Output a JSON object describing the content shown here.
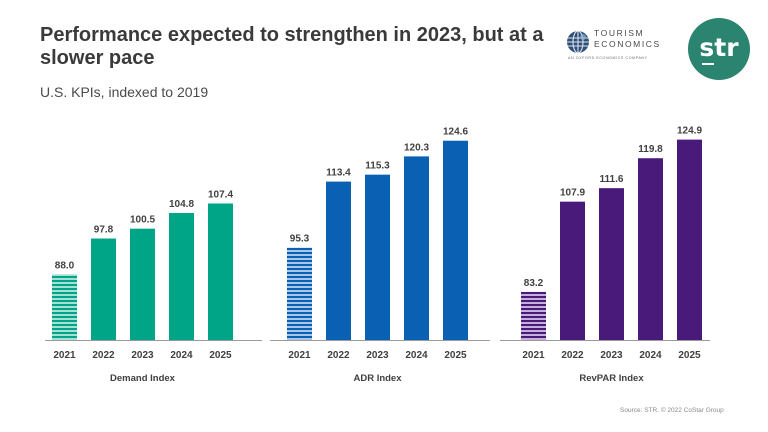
{
  "header": {
    "title": "Performance expected to strengthen in 2023, but at a slower pace",
    "subtitle": "U.S. KPIs, indexed to 2019"
  },
  "logos": {
    "tourism_economics": {
      "line1": "TOURISM",
      "line2": "ECONOMICS",
      "tagline": "AN OXFORD ECONOMICS COMPANY",
      "icon": "globe-icon"
    },
    "str": {
      "text": "str",
      "color": "#2b8470"
    }
  },
  "footer": {
    "source": "Source: STR. © 2022 CoStar Group"
  },
  "chart_data": [
    {
      "type": "bar",
      "title": "Demand Index",
      "xlabel": "Demand Index",
      "ylabel": "",
      "categories": [
        "2021",
        "2022",
        "2023",
        "2024",
        "2025"
      ],
      "values": [
        88.0,
        97.8,
        100.5,
        104.8,
        107.4
      ],
      "labels": [
        "88.0",
        "97.8",
        "100.5",
        "104.8",
        "107.4"
      ],
      "color": "#00a487",
      "hatched_categories": [
        "2021"
      ],
      "ylim": [
        70,
        130
      ],
      "grid": false
    },
    {
      "type": "bar",
      "title": "ADR Index",
      "xlabel": "ADR Index",
      "ylabel": "",
      "categories": [
        "2021",
        "2022",
        "2023",
        "2024",
        "2025"
      ],
      "values": [
        95.3,
        113.4,
        115.3,
        120.3,
        124.6
      ],
      "labels": [
        "95.3",
        "113.4",
        "115.3",
        "120.3",
        "124.6"
      ],
      "color": "#0a60b3",
      "hatched_categories": [
        "2021"
      ],
      "ylim": [
        70,
        130
      ],
      "grid": false
    },
    {
      "type": "bar",
      "title": "RevPAR Index",
      "xlabel": "RevPAR Index",
      "ylabel": "",
      "categories": [
        "2021",
        "2022",
        "2023",
        "2024",
        "2025"
      ],
      "values": [
        83.2,
        107.9,
        111.6,
        119.8,
        124.9
      ],
      "labels": [
        "83.2",
        "107.9",
        "111.6",
        "119.8",
        "124.9"
      ],
      "color": "#4a1a7a",
      "hatched_categories": [
        "2021"
      ],
      "ylim": [
        70,
        130
      ],
      "grid": false
    }
  ]
}
